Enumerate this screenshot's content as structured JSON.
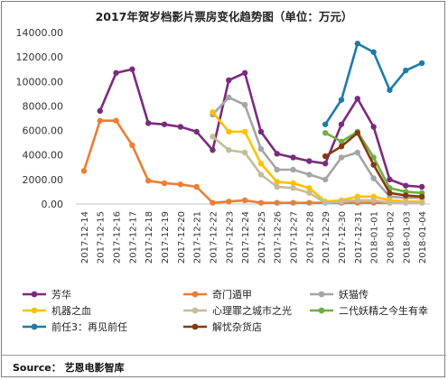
{
  "title": "2017年贺岁档影片票房变化趋势图（单位：万元）",
  "source": "Source： 艺恩电影智库",
  "chart_data": {
    "type": "line",
    "title": "2017年贺岁档影片票房变化趋势图（单位：万元）",
    "xlabel": "",
    "ylabel": "",
    "ylim": [
      0,
      14000
    ],
    "yticks": [
      "0.00",
      "2000.00",
      "4000.00",
      "6000.00",
      "8000.00",
      "10000.00",
      "12000.00",
      "14000.00"
    ],
    "grid": false,
    "legend_position": "bottom",
    "categories": [
      "2017-12-14",
      "2017-12-15",
      "2017-12-16",
      "2017-12-17",
      "2017-12-18",
      "2017-12-19",
      "2017-12-20",
      "2017-12-21",
      "2017-12-22",
      "2017-12-23",
      "2017-12-24",
      "2017-12-25",
      "2017-12-26",
      "2017-12-27",
      "2017-12-28",
      "2017-12-29",
      "2017-12-30",
      "2017-12-31",
      "2018-01-01",
      "2018-01-02",
      "2018-01-03",
      "2018-01-04"
    ],
    "series": [
      {
        "name": "芳华",
        "color": "#7b2a7e",
        "values": [
          null,
          7600,
          10700,
          11000,
          6600,
          6500,
          6300,
          5900,
          4400,
          10100,
          10700,
          5900,
          4100,
          3800,
          3500,
          3300,
          6500,
          8600,
          6300,
          2000,
          1500,
          1400
        ]
      },
      {
        "name": "奇门遁甲",
        "color": "#ed7d31",
        "values": [
          2700,
          6800,
          6800,
          4800,
          1900,
          1700,
          1600,
          1400,
          100,
          200,
          300,
          100,
          100,
          100,
          100,
          100,
          100,
          100,
          100,
          100,
          100,
          100
        ]
      },
      {
        "name": "妖猫传",
        "color": "#a5a5a5",
        "values": [
          null,
          null,
          null,
          null,
          null,
          null,
          null,
          null,
          7300,
          8700,
          8100,
          4500,
          2800,
          2800,
          2400,
          2000,
          3800,
          4200,
          2100,
          600,
          500,
          500
        ]
      },
      {
        "name": "机器之血",
        "color": "#ffc000",
        "values": [
          null,
          null,
          null,
          null,
          null,
          null,
          null,
          null,
          7500,
          5900,
          5900,
          3300,
          1800,
          1700,
          1300,
          200,
          300,
          600,
          600,
          300,
          200,
          200
        ]
      },
      {
        "name": "心理罪之城市之光",
        "color": "#c5bd97",
        "values": [
          null,
          null,
          null,
          null,
          null,
          null,
          null,
          null,
          5500,
          4400,
          4200,
          2400,
          1400,
          1300,
          900,
          100,
          200,
          300,
          300,
          100,
          100,
          100
        ]
      },
      {
        "name": "二代妖精之今生有幸",
        "color": "#70ad47",
        "values": [
          null,
          null,
          null,
          null,
          null,
          null,
          null,
          null,
          null,
          null,
          null,
          null,
          null,
          null,
          null,
          5800,
          5100,
          5900,
          3800,
          1300,
          1000,
          900
        ]
      },
      {
        "name": "前任3：再见前任",
        "color": "#1f7ba8",
        "values": [
          null,
          null,
          null,
          null,
          null,
          null,
          null,
          null,
          null,
          null,
          null,
          null,
          null,
          null,
          null,
          6500,
          8500,
          13100,
          12400,
          9300,
          10900,
          11500
        ]
      },
      {
        "name": "解忧杂货店",
        "color": "#843c0c",
        "values": [
          null,
          null,
          null,
          null,
          null,
          null,
          null,
          null,
          null,
          null,
          null,
          null,
          null,
          null,
          null,
          3900,
          4700,
          5800,
          3200,
          900,
          700,
          600
        ]
      }
    ]
  }
}
